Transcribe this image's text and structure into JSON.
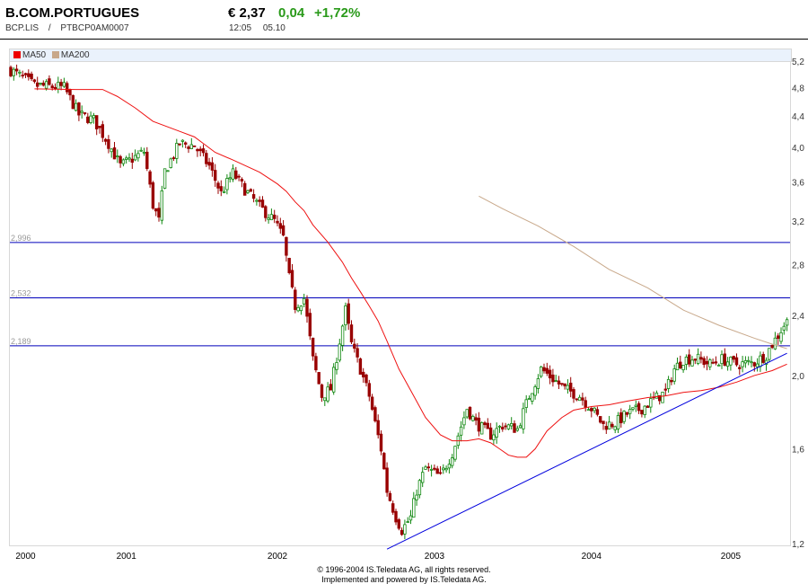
{
  "header": {
    "title": "B.COM.PORTUGUES",
    "symbol": "BCP.LIS",
    "separator": "/",
    "isin": "PTBCP0AM0007",
    "price": "€ 2,37",
    "change": "0,04",
    "change_pct": "+1,72%",
    "time": "12:05",
    "date": "05.10"
  },
  "colors": {
    "up": "#118811",
    "down": "#990000",
    "ma50": "#ee1111",
    "ma200": "#c8a88a",
    "trend": "#0000dd",
    "level": "#0000bb"
  },
  "legend": [
    {
      "label": "MA50",
      "color": "#ee0000"
    },
    {
      "label": "MA200",
      "color": "#c8a88a"
    }
  ],
  "footer": {
    "line1": "© 1996-2004 IS.Teledata AG, all rights reserved.",
    "line2": "Implemented and powered by IS.Teledata AG."
  },
  "chart_data": {
    "type": "candlestick",
    "scale": "log",
    "ylim": [
      1.2,
      5.2
    ],
    "yticks": [
      "5,2",
      "4,8",
      "4,4",
      "4,0",
      "3,6",
      "3,2",
      "2,8",
      "2,4",
      "2,0",
      "1,6",
      "1,2"
    ],
    "ytick_values": [
      5.2,
      4.8,
      4.4,
      4.0,
      3.6,
      3.2,
      2.8,
      2.4,
      2.0,
      1.6,
      1.2
    ],
    "x_unit": "week index",
    "xlim": [
      0,
      263
    ],
    "xticks": [
      {
        "label": "2000",
        "week": 5
      },
      {
        "label": "2001",
        "week": 39
      },
      {
        "label": "2002",
        "week": 90
      },
      {
        "label": "2003",
        "week": 143
      },
      {
        "label": "2004",
        "week": 196
      },
      {
        "label": "2005",
        "week": 243
      }
    ],
    "price_keypoints": [
      [
        0,
        5.06
      ],
      [
        8,
        4.83
      ],
      [
        18,
        4.8
      ],
      [
        23,
        4.42
      ],
      [
        28,
        4.35
      ],
      [
        33,
        4.05
      ],
      [
        37,
        3.78
      ],
      [
        45,
        3.95
      ],
      [
        48,
        3.36
      ],
      [
        50,
        3.2
      ],
      [
        52,
        3.72
      ],
      [
        57,
        4.05
      ],
      [
        62,
        4.02
      ],
      [
        67,
        3.78
      ],
      [
        71,
        3.48
      ],
      [
        75,
        3.7
      ],
      [
        79,
        3.52
      ],
      [
        84,
        3.34
      ],
      [
        89,
        3.2
      ],
      [
        92,
        3.04
      ],
      [
        94,
        2.69
      ],
      [
        96,
        2.47
      ],
      [
        99,
        2.53
      ],
      [
        102,
        2.1
      ],
      [
        105,
        1.88
      ],
      [
        108,
        1.92
      ],
      [
        111,
        2.22
      ],
      [
        113,
        2.44
      ],
      [
        115,
        2.2
      ],
      [
        118,
        2.04
      ],
      [
        121,
        1.88
      ],
      [
        123,
        1.73
      ],
      [
        125,
        1.6
      ],
      [
        127,
        1.41
      ],
      [
        130,
        1.3
      ],
      [
        132,
        1.25
      ],
      [
        135,
        1.3
      ],
      [
        137,
        1.41
      ],
      [
        140,
        1.51
      ],
      [
        145,
        1.47
      ],
      [
        149,
        1.58
      ],
      [
        154,
        1.81
      ],
      [
        157,
        1.73
      ],
      [
        162,
        1.67
      ],
      [
        166,
        1.72
      ],
      [
        171,
        1.7
      ],
      [
        175,
        1.88
      ],
      [
        179,
        2.04
      ],
      [
        183,
        1.98
      ],
      [
        187,
        1.92
      ],
      [
        192,
        1.88
      ],
      [
        196,
        1.81
      ],
      [
        200,
        1.72
      ],
      [
        204,
        1.73
      ],
      [
        208,
        1.78
      ],
      [
        213,
        1.81
      ],
      [
        217,
        1.86
      ],
      [
        221,
        1.9
      ],
      [
        224,
        2.04
      ],
      [
        227,
        2.1
      ],
      [
        231,
        2.11
      ],
      [
        236,
        2.07
      ],
      [
        240,
        2.1
      ],
      [
        245,
        2.07
      ],
      [
        251,
        2.08
      ],
      [
        255,
        2.13
      ],
      [
        257,
        2.2
      ],
      [
        259,
        2.26
      ],
      [
        262,
        2.37
      ]
    ],
    "ma50": [
      [
        8,
        4.78
      ],
      [
        22,
        4.77
      ],
      [
        24,
        4.77
      ],
      [
        31,
        4.77
      ],
      [
        36,
        4.67
      ],
      [
        42,
        4.51
      ],
      [
        48,
        4.33
      ],
      [
        57,
        4.2
      ],
      [
        62,
        4.13
      ],
      [
        69,
        3.94
      ],
      [
        75,
        3.85
      ],
      [
        84,
        3.71
      ],
      [
        90,
        3.58
      ],
      [
        93,
        3.5
      ],
      [
        96,
        3.39
      ],
      [
        99,
        3.3
      ],
      [
        102,
        3.16
      ],
      [
        107,
        3.0
      ],
      [
        112,
        2.82
      ],
      [
        115,
        2.69
      ],
      [
        118,
        2.58
      ],
      [
        121,
        2.47
      ],
      [
        124,
        2.36
      ],
      [
        127,
        2.22
      ],
      [
        131,
        2.04
      ],
      [
        136,
        1.88
      ],
      [
        140,
        1.76
      ],
      [
        145,
        1.67
      ],
      [
        149,
        1.64
      ],
      [
        154,
        1.64
      ],
      [
        158,
        1.65
      ],
      [
        162,
        1.63
      ],
      [
        165,
        1.6
      ],
      [
        168,
        1.57
      ],
      [
        171,
        1.56
      ],
      [
        174,
        1.56
      ],
      [
        177,
        1.6
      ],
      [
        181,
        1.69
      ],
      [
        186,
        1.76
      ],
      [
        190,
        1.8
      ],
      [
        196,
        1.82
      ],
      [
        202,
        1.83
      ],
      [
        208,
        1.85
      ],
      [
        215,
        1.87
      ],
      [
        221,
        1.88
      ],
      [
        227,
        1.9
      ],
      [
        233,
        1.91
      ],
      [
        239,
        1.93
      ],
      [
        245,
        1.96
      ],
      [
        251,
        2.0
      ],
      [
        257,
        2.03
      ],
      [
        262,
        2.07
      ]
    ],
    "ma200": [
      [
        158,
        3.45
      ],
      [
        166,
        3.32
      ],
      [
        178,
        3.15
      ],
      [
        190,
        2.96
      ],
      [
        202,
        2.76
      ],
      [
        215,
        2.61
      ],
      [
        227,
        2.44
      ],
      [
        239,
        2.33
      ],
      [
        251,
        2.24
      ],
      [
        257,
        2.2
      ],
      [
        262,
        2.17
      ]
    ],
    "trendline": [
      [
        127,
        1.18
      ],
      [
        262,
        2.14
      ]
    ],
    "levels": [
      {
        "value": 2.996,
        "label": "2,996"
      },
      {
        "value": 2.532,
        "label": "2,532"
      },
      {
        "value": 2.189,
        "label": "2,189"
      }
    ]
  }
}
